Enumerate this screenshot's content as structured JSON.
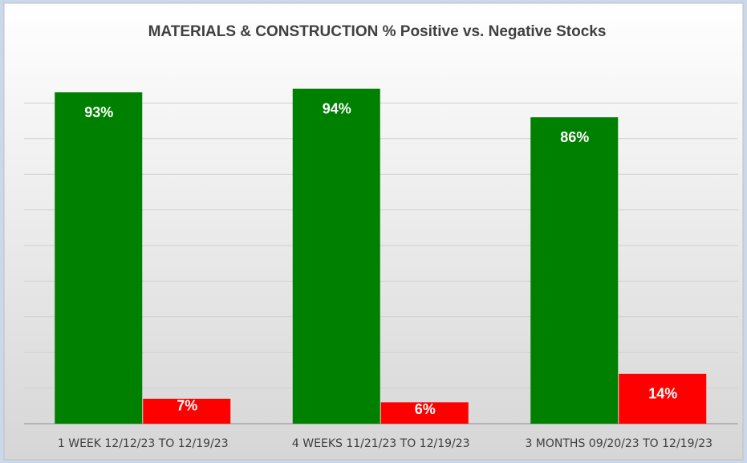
{
  "chart_data": {
    "type": "bar",
    "title": "MATERIALS & CONSTRUCTION % Positive vs. Negative Stocks",
    "categories": [
      "1 WEEK 12/12/23 TO 12/19/23",
      "4 WEEKS 11/21/23 TO 12/19/23",
      "3 MONTHS 09/20/23 TO 12/19/23"
    ],
    "series": [
      {
        "color": "#008000",
        "values": [
          93,
          94,
          86
        ],
        "value_labels": [
          "93%",
          "94%",
          "86%"
        ]
      },
      {
        "color": "#ff0000",
        "values": [
          7,
          6,
          14
        ],
        "value_labels": [
          "7%",
          "6%",
          "14%"
        ]
      }
    ],
    "ylim": [
      0,
      100
    ],
    "yticks": [
      0,
      10,
      20,
      30,
      40,
      50,
      60,
      70,
      80,
      90
    ],
    "grid": true
  }
}
